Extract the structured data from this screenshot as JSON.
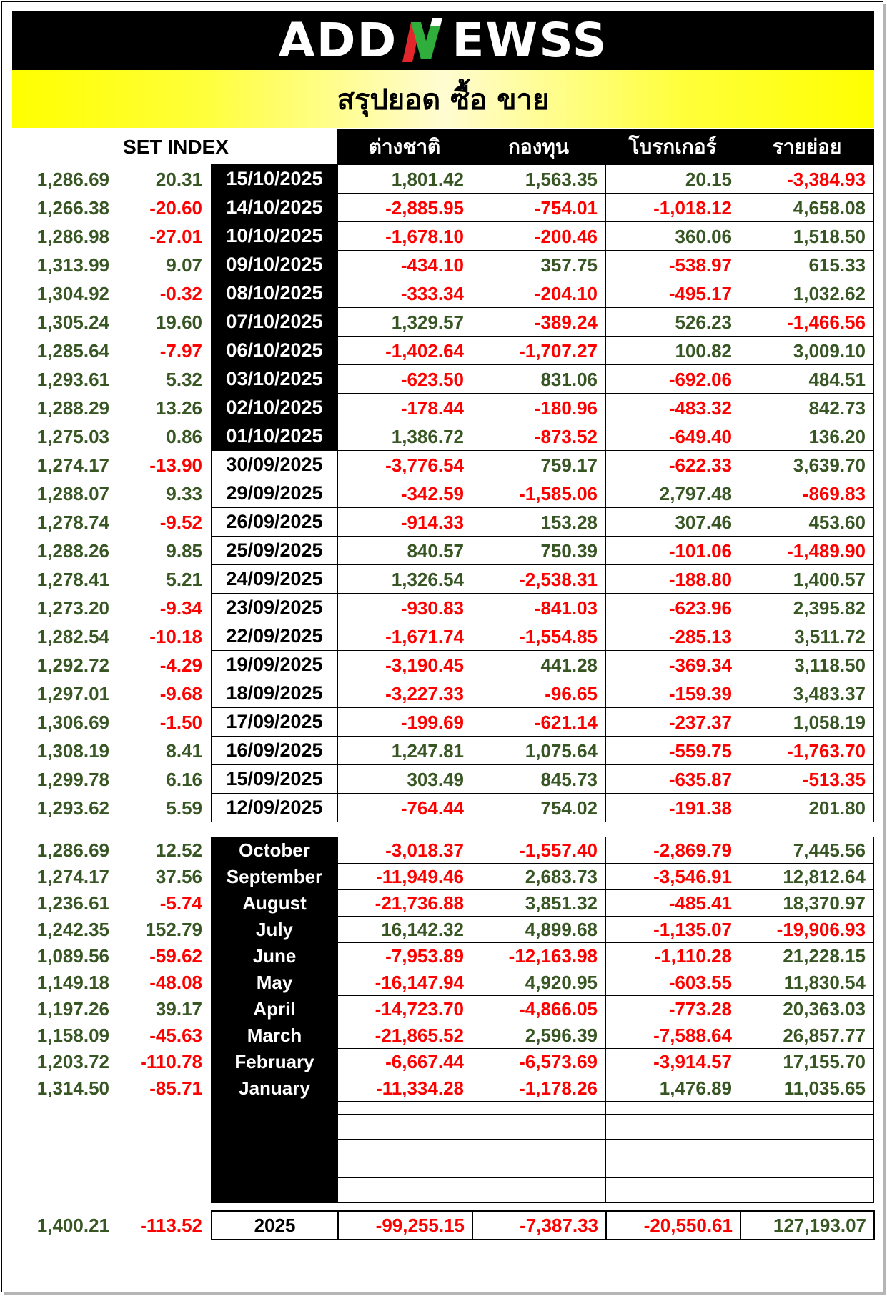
{
  "logo": {
    "prefix": "ADD",
    "mark": "N",
    "suffix": "EWSS"
  },
  "title": "สรุปยอด ซื้อ ขาย",
  "header": {
    "set_index": "SET INDEX",
    "columns": [
      "ต่างชาติ",
      "กองทุน",
      "โบรกเกอร์",
      "รายย่อย"
    ]
  },
  "colors": {
    "positive": "#375623",
    "negative": "#ff0000",
    "brand_bar": "#000000",
    "title_bar": "#ffff00",
    "logo_green": "#2fae3c",
    "logo_red": "#e3262b"
  },
  "daily": [
    {
      "set_index": "1,286.69",
      "change": "20.31",
      "date": "15/10/2025",
      "foreign": "1,801.42",
      "fund": "1,563.35",
      "broker": "20.15",
      "retail": "-3,384.93"
    },
    {
      "set_index": "1,266.38",
      "change": "-20.60",
      "date": "14/10/2025",
      "foreign": "-2,885.95",
      "fund": "-754.01",
      "broker": "-1,018.12",
      "retail": "4,658.08"
    },
    {
      "set_index": "1,286.98",
      "change": "-27.01",
      "date": "10/10/2025",
      "foreign": "-1,678.10",
      "fund": "-200.46",
      "broker": "360.06",
      "retail": "1,518.50"
    },
    {
      "set_index": "1,313.99",
      "change": "9.07",
      "date": "09/10/2025",
      "foreign": "-434.10",
      "fund": "357.75",
      "broker": "-538.97",
      "retail": "615.33"
    },
    {
      "set_index": "1,304.92",
      "change": "-0.32",
      "date": "08/10/2025",
      "foreign": "-333.34",
      "fund": "-204.10",
      "broker": "-495.17",
      "retail": "1,032.62"
    },
    {
      "set_index": "1,305.24",
      "change": "19.60",
      "date": "07/10/2025",
      "foreign": "1,329.57",
      "fund": "-389.24",
      "broker": "526.23",
      "retail": "-1,466.56"
    },
    {
      "set_index": "1,285.64",
      "change": "-7.97",
      "date": "06/10/2025",
      "foreign": "-1,402.64",
      "fund": "-1,707.27",
      "broker": "100.82",
      "retail": "3,009.10"
    },
    {
      "set_index": "1,293.61",
      "change": "5.32",
      "date": "03/10/2025",
      "foreign": "-623.50",
      "fund": "831.06",
      "broker": "-692.06",
      "retail": "484.51"
    },
    {
      "set_index": "1,288.29",
      "change": "13.26",
      "date": "02/10/2025",
      "foreign": "-178.44",
      "fund": "-180.96",
      "broker": "-483.32",
      "retail": "842.73"
    },
    {
      "set_index": "1,275.03",
      "change": "0.86",
      "date": "01/10/2025",
      "foreign": "1,386.72",
      "fund": "-873.52",
      "broker": "-649.40",
      "retail": "136.20"
    },
    {
      "set_index": "1,274.17",
      "change": "-13.90",
      "date": "30/09/2025",
      "foreign": "-3,776.54",
      "fund": "759.17",
      "broker": "-622.33",
      "retail": "3,639.70"
    },
    {
      "set_index": "1,288.07",
      "change": "9.33",
      "date": "29/09/2025",
      "foreign": "-342.59",
      "fund": "-1,585.06",
      "broker": "2,797.48",
      "retail": "-869.83"
    },
    {
      "set_index": "1,278.74",
      "change": "-9.52",
      "date": "26/09/2025",
      "foreign": "-914.33",
      "fund": "153.28",
      "broker": "307.46",
      "retail": "453.60"
    },
    {
      "set_index": "1,288.26",
      "change": "9.85",
      "date": "25/09/2025",
      "foreign": "840.57",
      "fund": "750.39",
      "broker": "-101.06",
      "retail": "-1,489.90"
    },
    {
      "set_index": "1,278.41",
      "change": "5.21",
      "date": "24/09/2025",
      "foreign": "1,326.54",
      "fund": "-2,538.31",
      "broker": "-188.80",
      "retail": "1,400.57"
    },
    {
      "set_index": "1,273.20",
      "change": "-9.34",
      "date": "23/09/2025",
      "foreign": "-930.83",
      "fund": "-841.03",
      "broker": "-623.96",
      "retail": "2,395.82"
    },
    {
      "set_index": "1,282.54",
      "change": "-10.18",
      "date": "22/09/2025",
      "foreign": "-1,671.74",
      "fund": "-1,554.85",
      "broker": "-285.13",
      "retail": "3,511.72"
    },
    {
      "set_index": "1,292.72",
      "change": "-4.29",
      "date": "19/09/2025",
      "foreign": "-3,190.45",
      "fund": "441.28",
      "broker": "-369.34",
      "retail": "3,118.50"
    },
    {
      "set_index": "1,297.01",
      "change": "-9.68",
      "date": "18/09/2025",
      "foreign": "-3,227.33",
      "fund": "-96.65",
      "broker": "-159.39",
      "retail": "3,483.37"
    },
    {
      "set_index": "1,306.69",
      "change": "-1.50",
      "date": "17/09/2025",
      "foreign": "-199.69",
      "fund": "-621.14",
      "broker": "-237.37",
      "retail": "1,058.19"
    },
    {
      "set_index": "1,308.19",
      "change": "8.41",
      "date": "16/09/2025",
      "foreign": "1,247.81",
      "fund": "1,075.64",
      "broker": "-559.75",
      "retail": "-1,763.70"
    },
    {
      "set_index": "1,299.78",
      "change": "6.16",
      "date": "15/09/2025",
      "foreign": "303.49",
      "fund": "845.73",
      "broker": "-635.87",
      "retail": "-513.35"
    },
    {
      "set_index": "1,293.62",
      "change": "5.59",
      "date": "12/09/2025",
      "foreign": "-764.44",
      "fund": "754.02",
      "broker": "-191.38",
      "retail": "201.80"
    }
  ],
  "monthly": [
    {
      "set_index": "1,286.69",
      "change": "12.52",
      "month": "October",
      "foreign": "-3,018.37",
      "fund": "-1,557.40",
      "broker": "-2,869.79",
      "retail": "7,445.56"
    },
    {
      "set_index": "1,274.17",
      "change": "37.56",
      "month": "September",
      "foreign": "-11,949.46",
      "fund": "2,683.73",
      "broker": "-3,546.91",
      "retail": "12,812.64"
    },
    {
      "set_index": "1,236.61",
      "change": "-5.74",
      "month": "August",
      "foreign": "-21,736.88",
      "fund": "3,851.32",
      "broker": "-485.41",
      "retail": "18,370.97"
    },
    {
      "set_index": "1,242.35",
      "change": "152.79",
      "month": "July",
      "foreign": "16,142.32",
      "fund": "4,899.68",
      "broker": "-1,135.07",
      "retail": "-19,906.93"
    },
    {
      "set_index": "1,089.56",
      "change": "-59.62",
      "month": "June",
      "foreign": "-7,953.89",
      "fund": "-12,163.98",
      "broker": "-1,110.28",
      "retail": "21,228.15"
    },
    {
      "set_index": "1,149.18",
      "change": "-48.08",
      "month": "May",
      "foreign": "-16,147.94",
      "fund": "4,920.95",
      "broker": "-603.55",
      "retail": "11,830.54"
    },
    {
      "set_index": "1,197.26",
      "change": "39.17",
      "month": "April",
      "foreign": "-14,723.70",
      "fund": "-4,866.05",
      "broker": "-773.28",
      "retail": "20,363.03"
    },
    {
      "set_index": "1,158.09",
      "change": "-45.63",
      "month": "March",
      "foreign": "-21,865.52",
      "fund": "2,596.39",
      "broker": "-7,588.64",
      "retail": "26,857.77"
    },
    {
      "set_index": "1,203.72",
      "change": "-110.78",
      "month": "February",
      "foreign": "-6,667.44",
      "fund": "-6,573.69",
      "broker": "-3,914.57",
      "retail": "17,155.70"
    },
    {
      "set_index": "1,314.50",
      "change": "-85.71",
      "month": "January",
      "foreign": "-11,334.28",
      "fund": "-1,178.26",
      "broker": "1,476.89",
      "retail": "11,035.65"
    }
  ],
  "total": {
    "set_index": "1,400.21",
    "change": "-113.52",
    "year": "2025",
    "foreign": "-99,255.15",
    "fund": "-7,387.33",
    "broker": "-20,550.61",
    "retail": "127,193.07"
  }
}
